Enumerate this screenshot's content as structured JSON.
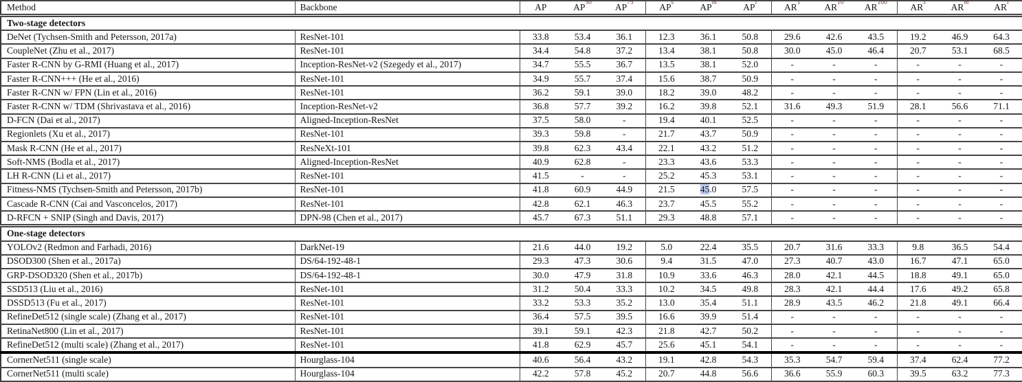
{
  "colors": {
    "border": "#454545",
    "thick_divider": "#000000",
    "text": "#161616",
    "superscript": "#71362b",
    "selection_highlight": "#bcc8ea"
  },
  "header": {
    "method_label": "Method",
    "backbone_label": "Backbone",
    "metrics": [
      {
        "base": "AP",
        "sup": "",
        "italic": false
      },
      {
        "base": "AP",
        "sup": "50",
        "italic": false
      },
      {
        "base": "AP",
        "sup": "75",
        "italic": false
      },
      {
        "base": "AP",
        "sup": "s",
        "italic": true
      },
      {
        "base": "AP",
        "sup": "m",
        "italic": true
      },
      {
        "base": "AP",
        "sup": "l",
        "italic": true
      },
      {
        "base": "AR",
        "sup": "1",
        "italic": false
      },
      {
        "base": "AR",
        "sup": "10",
        "italic": false
      },
      {
        "base": "AR",
        "sup": "100",
        "italic": false
      },
      {
        "base": "AR",
        "sup": "s",
        "italic": true
      },
      {
        "base": "AR",
        "sup": "m",
        "italic": true
      },
      {
        "base": "AR",
        "sup": "l",
        "italic": true
      }
    ]
  },
  "sections": [
    {
      "label": "Two-stage detectors",
      "rows": [
        {
          "method": "DeNet (Tychsen-Smith and Petersson, 2017a)",
          "backbone": "ResNet-101",
          "values": [
            "33.8",
            "53.4",
            "36.1",
            "12.3",
            "36.1",
            "50.8",
            "29.6",
            "42.6",
            "43.5",
            "19.2",
            "46.9",
            "64.3"
          ]
        },
        {
          "method": "CoupleNet (Zhu et al., 2017)",
          "backbone": "ResNet-101",
          "values": [
            "34.4",
            "54.8",
            "37.2",
            "13.4",
            "38.1",
            "50.8",
            "30.0",
            "45.0",
            "46.4",
            "20.7",
            "53.1",
            "68.5"
          ]
        },
        {
          "method": "Faster R-CNN by G-RMI (Huang et al., 2017)",
          "backbone": "Inception-ResNet-v2 (Szegedy et al., 2017)",
          "values": [
            "34.7",
            "55.5",
            "36.7",
            "13.5",
            "38.1",
            "52.0",
            "-",
            "-",
            "-",
            "-",
            "-",
            "-"
          ]
        },
        {
          "method": "Faster R-CNN+++ (He et al., 2016)",
          "backbone": "ResNet-101",
          "values": [
            "34.9",
            "55.7",
            "37.4",
            "15.6",
            "38.7",
            "50.9",
            "-",
            "-",
            "-",
            "-",
            "-",
            "-"
          ]
        },
        {
          "method": "Faster R-CNN w/ FPN (Lin et al., 2016)",
          "backbone": "ResNet-101",
          "values": [
            "36.2",
            "59.1",
            "39.0",
            "18.2",
            "39.0",
            "48.2",
            "-",
            "-",
            "-",
            "-",
            "-",
            "-"
          ]
        },
        {
          "method": "Faster R-CNN w/ TDM (Shrivastava et al., 2016)",
          "backbone": "Inception-ResNet-v2",
          "values": [
            "36.8",
            "57.7",
            "39.2",
            "16.2",
            "39.8",
            "52.1",
            "31.6",
            "49.3",
            "51.9",
            "28.1",
            "56.6",
            "71.1"
          ]
        },
        {
          "method": "D-FCN (Dai et al., 2017)",
          "backbone": "Aligned-Inception-ResNet",
          "values": [
            "37.5",
            "58.0",
            "-",
            "19.4",
            "40.1",
            "52.5",
            "-",
            "-",
            "-",
            "-",
            "-",
            "-"
          ]
        },
        {
          "method": "Regionlets (Xu et al., 2017)",
          "backbone": "ResNet-101",
          "values": [
            "39.3",
            "59.8",
            "-",
            "21.7",
            "43.7",
            "50.9",
            "-",
            "-",
            "-",
            "-",
            "-",
            "-"
          ]
        },
        {
          "method": "Mask R-CNN (He et al., 2017)",
          "backbone": "ResNeXt-101",
          "values": [
            "39.8",
            "62.3",
            "43.4",
            "22.1",
            "43.2",
            "51.2",
            "-",
            "-",
            "-",
            "-",
            "-",
            "-"
          ]
        },
        {
          "method": "Soft-NMS (Bodla et al., 2017)",
          "backbone": "Aligned-Inception-ResNet",
          "values": [
            "40.9",
            "62.8",
            "-",
            "23.3",
            "43.6",
            "53.3",
            "-",
            "-",
            "-",
            "-",
            "-",
            "-"
          ]
        },
        {
          "method": "LH R-CNN (Li et al., 2017)",
          "backbone": "ResNet-101",
          "values": [
            "41.5",
            "-",
            "-",
            "25.2",
            "45.3",
            "53.1",
            "-",
            "-",
            "-",
            "-",
            "-",
            "-"
          ]
        },
        {
          "method": "Fitness-NMS (Tychsen-Smith and Petersson, 2017b)",
          "backbone": "ResNet-101",
          "values": [
            "41.8",
            "60.9",
            "44.9",
            "21.5",
            "45.0",
            "57.5",
            "-",
            "-",
            "-",
            "-",
            "-",
            "-"
          ],
          "selection": {
            "col": 4,
            "chars": 2
          }
        },
        {
          "method": "Cascade R-CNN (Cai and Vasconcelos, 2017)",
          "backbone": "ResNet-101",
          "values": [
            "42.8",
            "62.1",
            "46.3",
            "23.7",
            "45.5",
            "55.2",
            "-",
            "-",
            "-",
            "-",
            "-",
            "-"
          ]
        },
        {
          "method": "D-RFCN + SNIP (Singh and Davis, 2017)",
          "backbone": "DPN-98 (Chen et al., 2017)",
          "values": [
            "45.7",
            "67.3",
            "51.1",
            "29.3",
            "48.8",
            "57.1",
            "-",
            "-",
            "-",
            "-",
            "-",
            "-"
          ]
        }
      ]
    },
    {
      "label": "One-stage detectors",
      "rows": [
        {
          "method": "YOLOv2 (Redmon and Farhadi, 2016)",
          "backbone": "DarkNet-19",
          "values": [
            "21.6",
            "44.0",
            "19.2",
            "5.0",
            "22.4",
            "35.5",
            "20.7",
            "31.6",
            "33.3",
            "9.8",
            "36.5",
            "54.4"
          ]
        },
        {
          "method": "DSOD300 (Shen et al., 2017a)",
          "backbone": "DS/64-192-48-1",
          "values": [
            "29.3",
            "47.3",
            "30.6",
            "9.4",
            "31.5",
            "47.0",
            "27.3",
            "40.7",
            "43.0",
            "16.7",
            "47.1",
            "65.0"
          ]
        },
        {
          "method": "GRP-DSOD320 (Shen et al., 2017b)",
          "backbone": "DS/64-192-48-1",
          "values": [
            "30.0",
            "47.9",
            "31.8",
            "10.9",
            "33.6",
            "46.3",
            "28.0",
            "42.1",
            "44.5",
            "18.8",
            "49.1",
            "65.0"
          ]
        },
        {
          "method": "SSD513 (Liu et al., 2016)",
          "backbone": "ResNet-101",
          "values": [
            "31.2",
            "50.4",
            "33.3",
            "10.2",
            "34.5",
            "49.8",
            "28.3",
            "42.1",
            "44.4",
            "17.6",
            "49.2",
            "65.8"
          ]
        },
        {
          "method": "DSSD513 (Fu et al., 2017)",
          "backbone": "ResNet-101",
          "values": [
            "33.2",
            "53.3",
            "35.2",
            "13.0",
            "35.4",
            "51.1",
            "28.9",
            "43.5",
            "46.2",
            "21.8",
            "49.1",
            "66.4"
          ]
        },
        {
          "method": "RefineDet512 (single scale) (Zhang et al., 2017)",
          "backbone": "ResNet-101",
          "values": [
            "36.4",
            "57.5",
            "39.5",
            "16.6",
            "39.9",
            "51.4",
            "-",
            "-",
            "-",
            "-",
            "-",
            "-"
          ]
        },
        {
          "method": "RetinaNet800 (Lin et al., 2017)",
          "backbone": "ResNet-101",
          "values": [
            "39.1",
            "59.1",
            "42.3",
            "21.8",
            "42.7",
            "50.2",
            "-",
            "-",
            "-",
            "-",
            "-",
            "-"
          ]
        },
        {
          "method": "RefineDet512 (multi scale) (Zhang et al., 2017)",
          "backbone": "ResNet-101",
          "values": [
            "41.8",
            "62.9",
            "45.7",
            "25.6",
            "45.1",
            "54.1",
            "-",
            "-",
            "-",
            "-",
            "-",
            "-"
          ]
        },
        {
          "method": "CornerNet511 (single scale)",
          "backbone": "Hourglass-104",
          "thick_top": true,
          "values": [
            "40.6",
            "56.4",
            "43.2",
            "19.1",
            "42.8",
            "54.3",
            "35.3",
            "54.7",
            "59.4",
            "37.4",
            "62.4",
            "77.2"
          ]
        },
        {
          "method": "CornerNet511 (multi scale)",
          "backbone": "Hourglass-104",
          "values": [
            "42.2",
            "57.8",
            "45.2",
            "20.7",
            "44.8",
            "56.6",
            "36.6",
            "55.9",
            "60.3",
            "39.5",
            "63.2",
            "77.3"
          ]
        }
      ]
    }
  ]
}
